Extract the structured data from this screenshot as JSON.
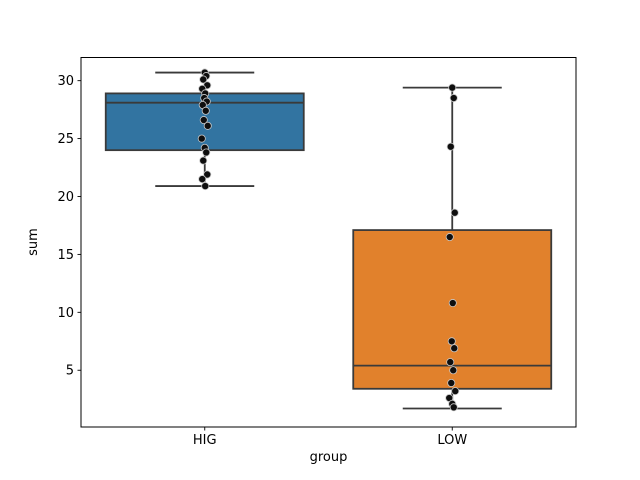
{
  "chart_data": {
    "type": "boxplot",
    "title": "",
    "xlabel": "group",
    "ylabel": "sum",
    "categories": [
      "HIG",
      "LOW"
    ],
    "ylim": [
      0.1,
      32.0
    ],
    "yticks": [
      5,
      10,
      15,
      20,
      25,
      30
    ],
    "grid": false,
    "legend": "none",
    "edge_color": "#3a3a3a",
    "point_color": "#0e0e0e",
    "point_edge_color": "#c8c8c8",
    "series": [
      {
        "name": "HIG",
        "color": "#3274a1",
        "whisker_low": 20.9,
        "q1": 24.0,
        "median": 28.1,
        "q3": 28.9,
        "whisker_high": 30.7,
        "points": [
          30.7,
          30.4,
          30.1,
          29.6,
          29.3,
          28.9,
          28.5,
          28.2,
          27.9,
          27.4,
          26.6,
          26.1,
          25.0,
          24.2,
          23.8,
          23.1,
          21.9,
          21.5,
          20.9
        ]
      },
      {
        "name": "LOW",
        "color": "#e1812c",
        "whisker_low": 1.7,
        "q1": 3.4,
        "median": 5.4,
        "q3": 17.1,
        "whisker_high": 29.4,
        "points": [
          29.4,
          28.5,
          24.3,
          18.6,
          16.5,
          10.8,
          7.5,
          6.9,
          5.7,
          5.0,
          3.9,
          3.2,
          2.6,
          2.1,
          1.8
        ]
      }
    ]
  }
}
